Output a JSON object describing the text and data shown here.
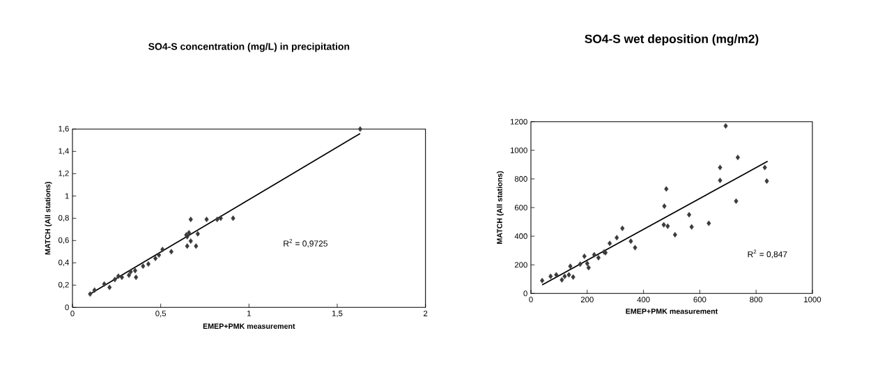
{
  "chart_data": [
    {
      "type": "scatter",
      "title": "SO4-S concentration (mg/L) in precipitation",
      "xlabel": "EMEP+PMK measurement",
      "ylabel": "MATCH (All stations)",
      "grid": false,
      "xlim": [
        0,
        2
      ],
      "ylim": [
        0,
        1.6
      ],
      "xticks": [
        0,
        {
          "value": 0.5,
          "label": "0,5"
        },
        1,
        {
          "value": 1.5,
          "label": "1,5"
        },
        2
      ],
      "yticks": [
        0,
        {
          "value": 0.2,
          "label": "0,2"
        },
        {
          "value": 0.4,
          "label": "0,4"
        },
        {
          "value": 0.6,
          "label": "0,6"
        },
        {
          "value": 0.8,
          "label": "0,8"
        },
        1,
        {
          "value": 1.2,
          "label": "1,2"
        },
        {
          "value": 1.4,
          "label": "1,4"
        },
        {
          "value": 1.6,
          "label": "1,6"
        }
      ],
      "series": [
        {
          "marker": "diamond",
          "color": "#3a3a3a",
          "x": [
            0.1,
            0.125,
            0.18,
            0.21,
            0.24,
            0.26,
            0.28,
            0.33,
            0.32,
            0.36,
            0.355,
            0.4,
            0.43,
            0.47,
            0.49,
            0.51,
            0.56,
            0.645,
            0.65,
            0.66,
            0.67,
            0.65,
            0.7,
            0.67,
            0.71,
            0.76,
            0.82,
            0.84,
            0.91,
            1.63
          ],
          "values": [
            0.12,
            0.155,
            0.21,
            0.18,
            0.25,
            0.28,
            0.27,
            0.32,
            0.29,
            0.27,
            0.33,
            0.37,
            0.39,
            0.44,
            0.47,
            0.52,
            0.5,
            0.65,
            0.635,
            0.67,
            0.595,
            0.55,
            0.55,
            0.79,
            0.66,
            0.79,
            0.79,
            0.8,
            0.8,
            1.6
          ]
        },
        {
          "type": "line",
          "color": "#000000",
          "x": [
            0.1,
            1.63
          ],
          "values": [
            0.12,
            1.56
          ]
        }
      ],
      "annotations": [
        "R$^{2}$ = 0,9725"
      ]
    },
    {
      "type": "scatter",
      "title": "SO4-S wet deposition (mg/m2)",
      "xlabel": "EMEP+PMK measurement",
      "ylabel": "MATCH (All stations)",
      "grid": false,
      "xlim": [
        0,
        1000
      ],
      "ylim": [
        0,
        1200
      ],
      "xticks": [
        0,
        200,
        400,
        600,
        800,
        1000
      ],
      "yticks": [
        0,
        200,
        400,
        600,
        800,
        1000,
        1200
      ],
      "series": [
        {
          "marker": "diamond",
          "color": "#3a3a3a",
          "x": [
            40,
            70,
            90,
            110,
            120,
            135,
            140,
            150,
            175,
            190,
            205,
            200,
            225,
            240,
            265,
            260,
            280,
            305,
            325,
            355,
            370,
            472,
            474,
            481,
            486,
            512,
            562,
            571,
            632,
            672,
            672,
            692,
            729,
            735,
            831,
            838
          ],
          "values": [
            90,
            120,
            130,
            95,
            120,
            130,
            190,
            115,
            205,
            260,
            180,
            210,
            270,
            250,
            285,
            290,
            350,
            390,
            455,
            365,
            320,
            480,
            610,
            730,
            470,
            410,
            550,
            465,
            490,
            790,
            880,
            1170,
            645,
            950,
            880,
            785
          ]
        },
        {
          "type": "line",
          "color": "#000000",
          "x": [
            40,
            841
          ],
          "values": [
            60,
            923
          ]
        }
      ],
      "annotations": [
        "R$^{2}$ = 0,847"
      ]
    }
  ]
}
